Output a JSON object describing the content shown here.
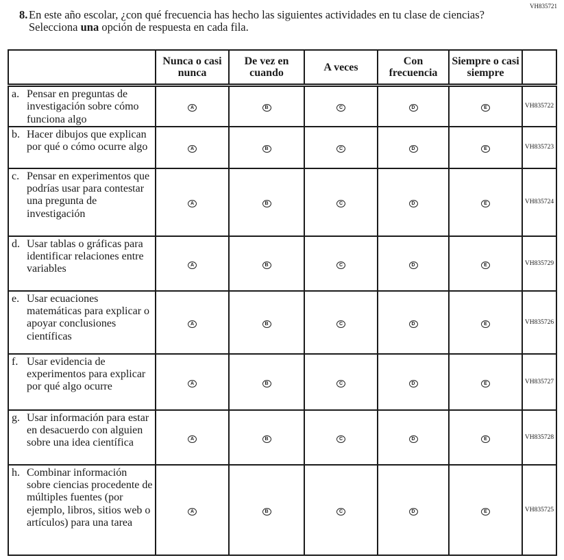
{
  "question_id": "VH835721",
  "question": {
    "number": "8.",
    "text_before": "En este año escolar, ¿con qué frecuencia has hecho las siguientes actividades en tu clase de ciencias? Selecciona ",
    "text_bold": "una",
    "text_after": " opción de respuesta en cada fila."
  },
  "columns": [
    "Nunca o casi nunca",
    "De vez en cuando",
    "A veces",
    "Con frecuencia",
    "Siempre o casi siempre"
  ],
  "bubbles": [
    "A",
    "B",
    "C",
    "D",
    "E"
  ],
  "rows": [
    {
      "label": "a.",
      "text": "Pensar en preguntas de investigación sobre cómo funciona algo",
      "code": "VH835722"
    },
    {
      "label": "b.",
      "text": "Hacer dibujos que explican por qué o cómo ocurre algo",
      "code": "VH835723"
    },
    {
      "label": "c.",
      "text": "Pensar en experimentos que podrías usar para contestar una pregunta de investigación",
      "code": "VH835724"
    },
    {
      "label": "d.",
      "text": "Usar tablas o gráficas para identificar relaciones entre variables",
      "code": "VH835729"
    },
    {
      "label": "e.",
      "text": "Usar ecuaciones matemáticas para explicar o apoyar conclusiones científicas",
      "code": "VH835726"
    },
    {
      "label": "f.",
      "text": "Usar evidencia de experimentos para explicar por qué algo ocurre",
      "code": "VH835727"
    },
    {
      "label": "g.",
      "text": "Usar información para estar en desacuerdo con alguien sobre una idea científica",
      "code": "VH835728"
    },
    {
      "label": "h.",
      "text": "Combinar información sobre ciencias procedente de múltiples fuentes (por ejemplo, libros, sitios web o artículos) para una tarea",
      "code": "VH835725"
    }
  ]
}
